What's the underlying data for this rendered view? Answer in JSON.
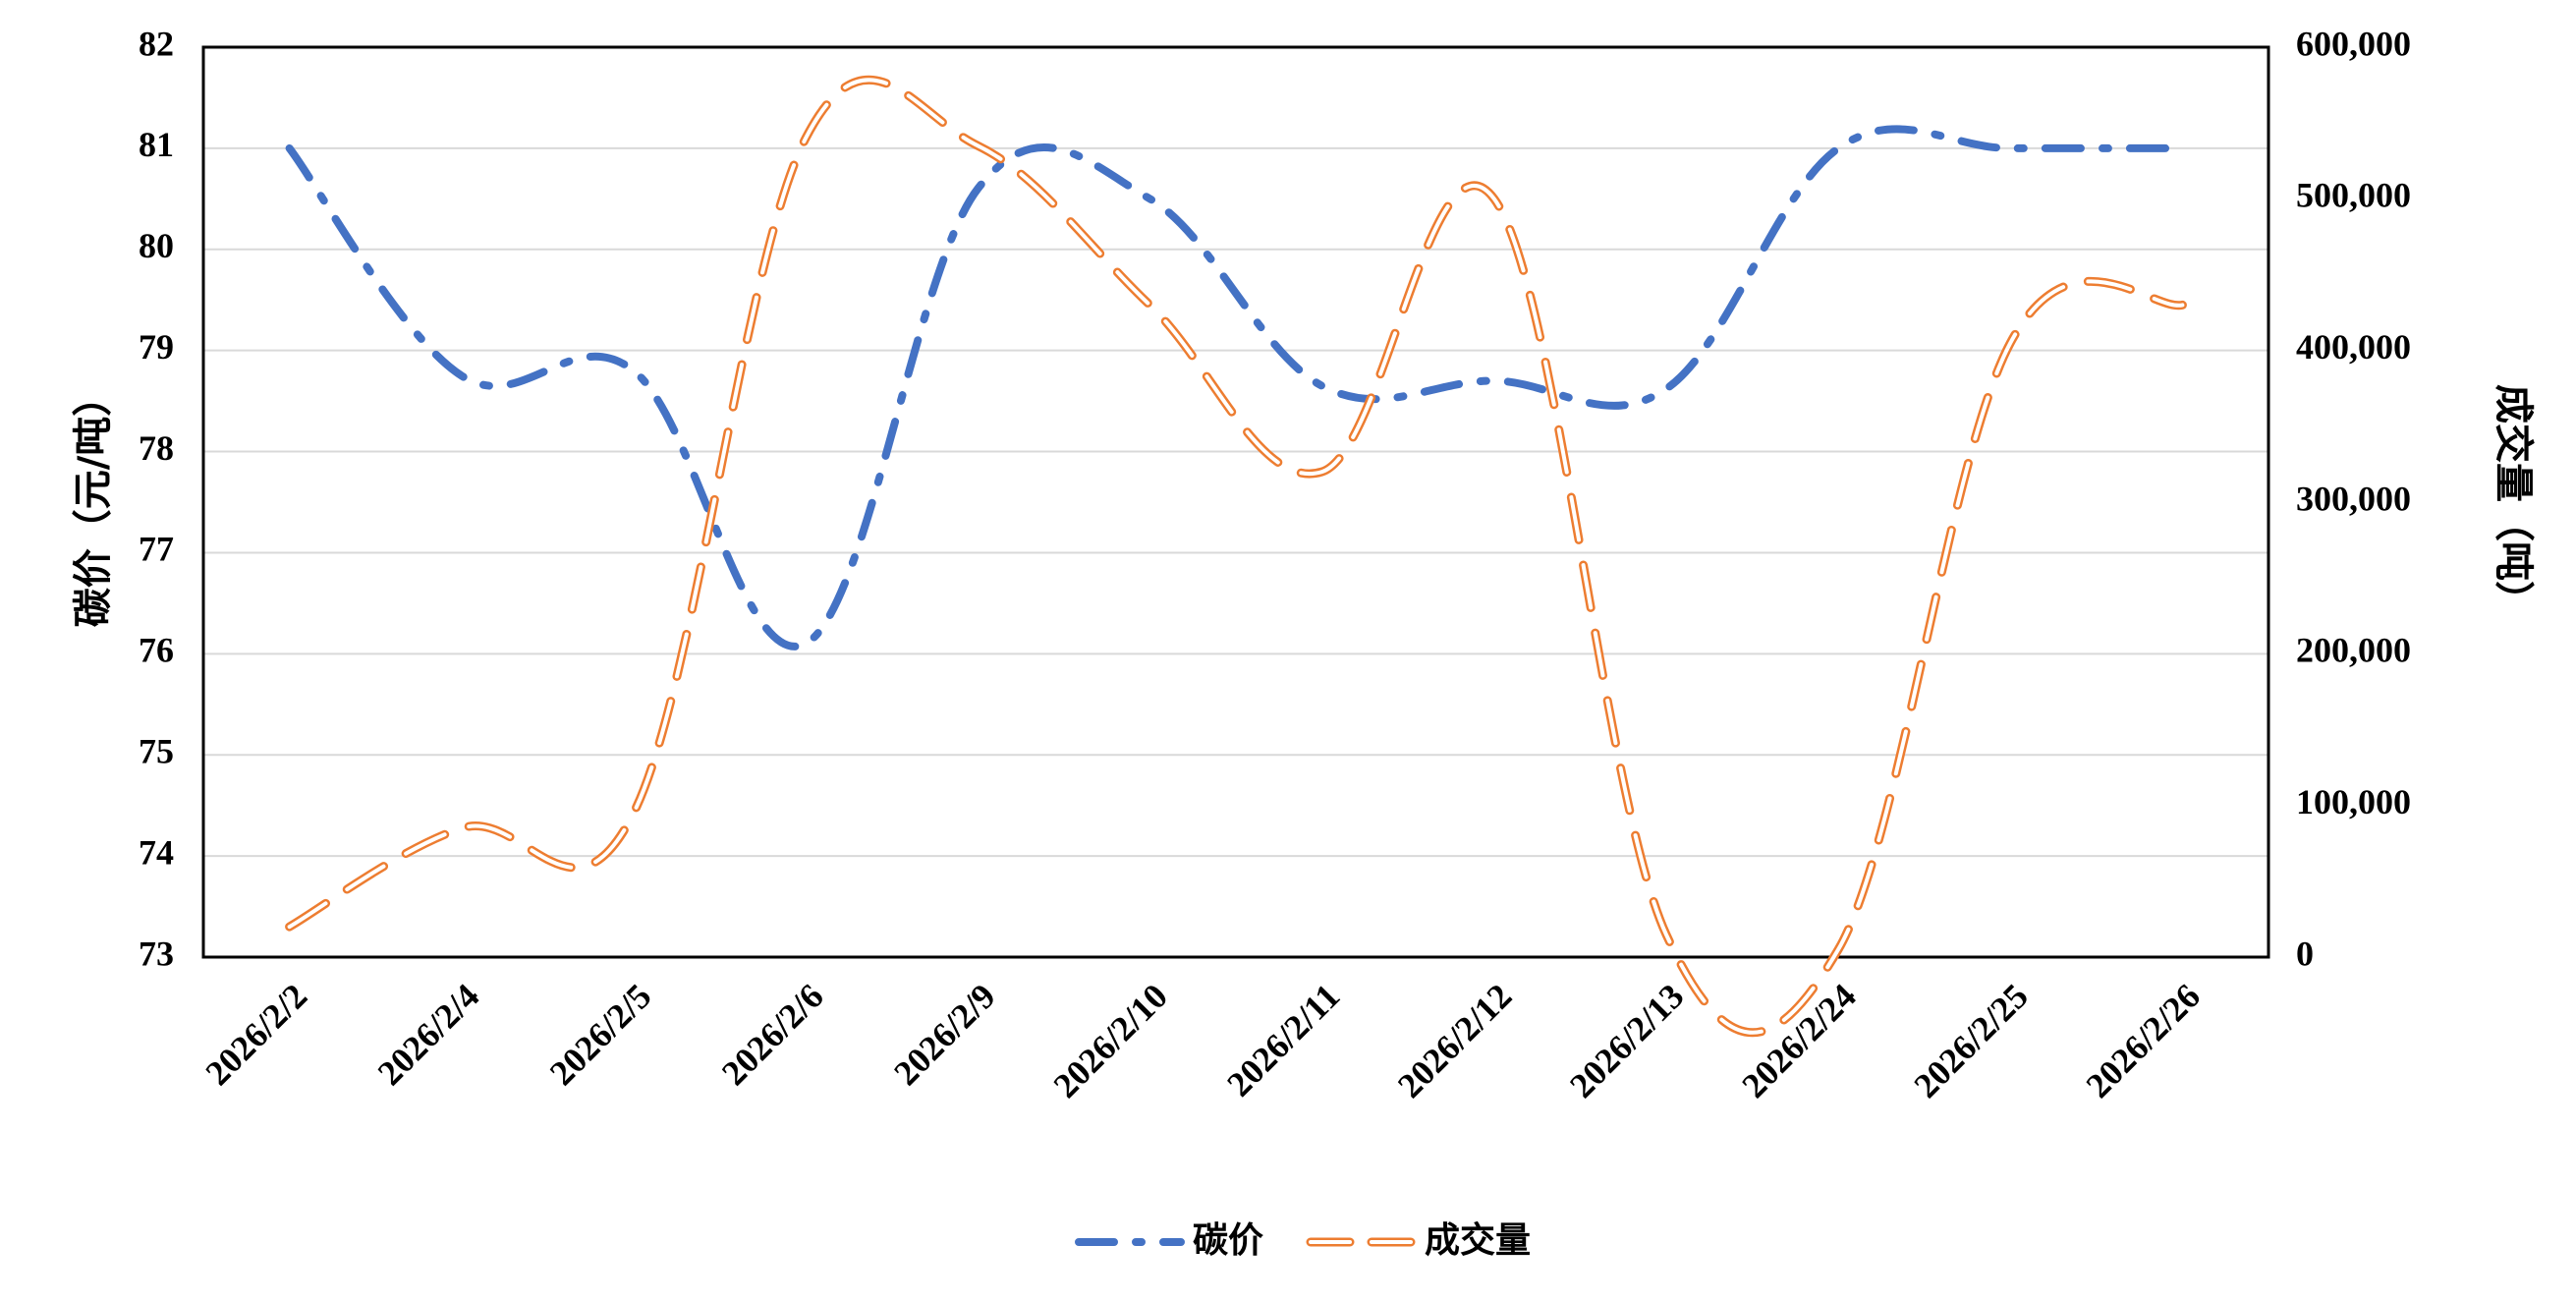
{
  "chart_data": {
    "type": "line",
    "categories": [
      "2026/2/2",
      "2026/2/4",
      "2026/2/5",
      "2026/2/6",
      "2026/2/9",
      "2026/2/10",
      "2026/2/11",
      "2026/2/12",
      "2026/2/13",
      "2026/2/24",
      "2026/2/25",
      "2026/2/26"
    ],
    "ylabel_left": "碳价（元/吨）",
    "ylabel_right": "成交量（吨）",
    "ylim_left": [
      73,
      82
    ],
    "yticks_left": [
      73,
      74,
      75,
      76,
      77,
      78,
      79,
      80,
      81,
      82
    ],
    "ytick_labels_left": [
      "73",
      "74",
      "75",
      "76",
      "77",
      "78",
      "79",
      "80",
      "81",
      "82"
    ],
    "ylim_right": [
      0,
      600000
    ],
    "yticks_right": [
      0,
      100000,
      200000,
      300000,
      400000,
      500000,
      600000
    ],
    "ytick_labels_right": [
      "0",
      "100,000",
      "200,000",
      "300,000",
      "400,000",
      "500,000",
      "600,000"
    ],
    "grid": true,
    "legend_position": "bottom",
    "series": [
      {
        "name": "碳价",
        "axis": "left",
        "color": "#4472C4",
        "dash": "dash-dot",
        "values": [
          81.0,
          78.75,
          78.8,
          76.1,
          80.6,
          80.5,
          78.65,
          78.7,
          78.62,
          81.0,
          81.0,
          81.0
        ]
      },
      {
        "name": "成交量",
        "axis": "right",
        "color": "#ED7D31",
        "dash": "dashed-outline",
        "values": [
          20000,
          85000,
          95000,
          540000,
          535000,
          430000,
          320000,
          500000,
          15000,
          5000,
          405000,
          430000
        ]
      }
    ]
  }
}
